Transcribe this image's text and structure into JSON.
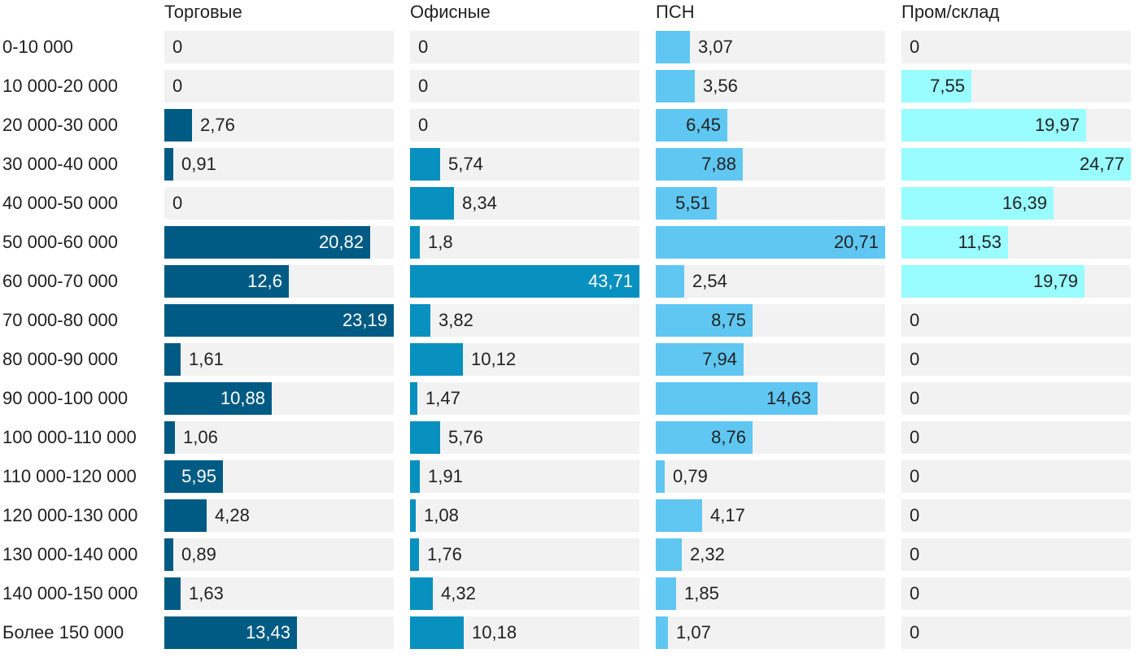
{
  "chart_data": {
    "type": "bar",
    "orientation": "horizontal",
    "layout": "small-multiples",
    "categories": [
      "0-10 000",
      "10 000-20 000",
      "20 000-30 000",
      "30 000-40 000",
      "40 000-50 000",
      "50 000-60 000",
      "60 000-70 000",
      "70 000-80 000",
      "80 000-90 000",
      "90 000-100 000",
      "100 000-110 000",
      "110 000-120 000",
      "120 000-130 000",
      "130 000-140 000",
      "140 000-150 000",
      "Более 150 000"
    ],
    "series": [
      {
        "name": "Торговые",
        "color": "#005b84",
        "value_labels": [
          "0",
          "0",
          "2,76",
          "0,91",
          "0",
          "20,82",
          "12,6",
          "23,19",
          "1,61",
          "10,88",
          "1,06",
          "5,95",
          "4,28",
          "0,89",
          "1,63",
          "13,43"
        ],
        "values": [
          0,
          0,
          2.76,
          0.91,
          0,
          20.82,
          12.6,
          23.19,
          1.61,
          10.88,
          1.06,
          5.95,
          4.28,
          0.89,
          1.63,
          13.43
        ],
        "xlim": [
          0,
          23.19
        ]
      },
      {
        "name": "Офисные",
        "color": "#0890bf",
        "value_labels": [
          "0",
          "0",
          "0",
          "5,74",
          "8,34",
          "1,8",
          "43,71",
          "3,82",
          "10,12",
          "1,47",
          "5,76",
          "1,91",
          "1,08",
          "1,76",
          "4,32",
          "10,18"
        ],
        "values": [
          0,
          0,
          0,
          5.74,
          8.34,
          1.8,
          43.71,
          3.82,
          10.12,
          1.47,
          5.76,
          1.91,
          1.08,
          1.76,
          4.32,
          10.18
        ],
        "xlim": [
          0,
          43.71
        ]
      },
      {
        "name": "ПСН",
        "color": "#5fc7f2",
        "value_labels": [
          "3,07",
          "3,56",
          "6,45",
          "7,88",
          "5,51",
          "20,71",
          "2,54",
          "8,75",
          "7,94",
          "14,63",
          "8,76",
          "0,79",
          "4,17",
          "2,32",
          "1,85",
          "1,07"
        ],
        "values": [
          3.07,
          3.56,
          6.45,
          7.88,
          5.51,
          20.71,
          2.54,
          8.75,
          7.94,
          14.63,
          8.76,
          0.79,
          4.17,
          2.32,
          1.85,
          1.07
        ],
        "xlim": [
          0,
          20.71
        ]
      },
      {
        "name": "Пром/склад",
        "color": "#99fcff",
        "value_labels": [
          "0",
          "7,55",
          "19,97",
          "24,77",
          "16,39",
          "11,53",
          "19,79",
          "0",
          "0",
          "0",
          "0",
          "0",
          "0",
          "0",
          "0",
          "0"
        ],
        "values": [
          0,
          7.55,
          19.97,
          24.77,
          16.39,
          11.53,
          19.79,
          0,
          0,
          0,
          0,
          0,
          0,
          0,
          0,
          0
        ],
        "xlim": [
          0,
          24.77
        ]
      }
    ],
    "track_color": "#f2f2f2",
    "label_color_dark": "#222222",
    "label_color_light": "#ffffff",
    "legend": "none",
    "grid": false
  }
}
